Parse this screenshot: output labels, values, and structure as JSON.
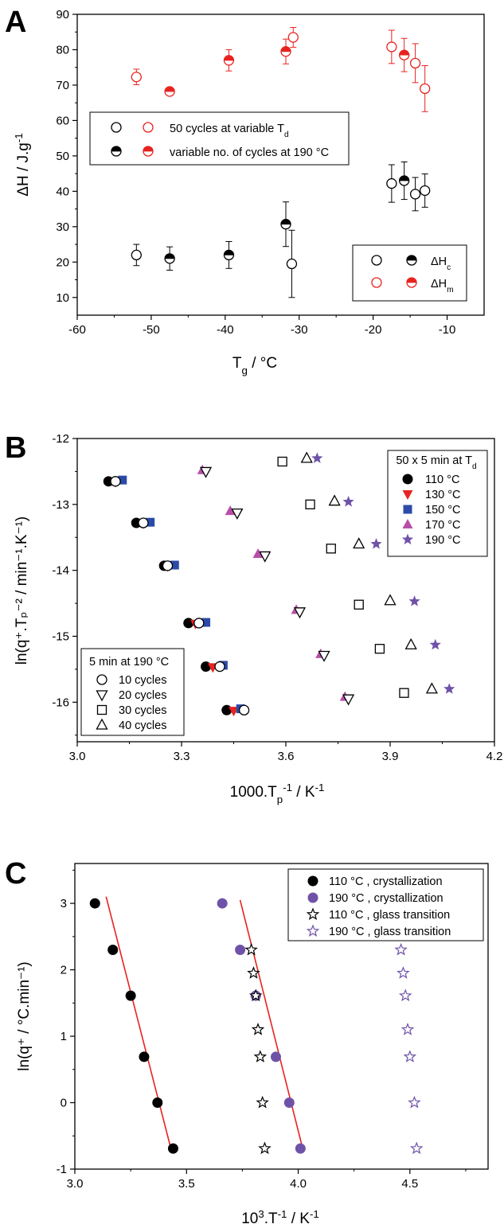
{
  "colors": {
    "black": "#000000",
    "red": "#e8231f",
    "blue": "#2c4aa8",
    "magenta": "#b84ea8",
    "purple": "#6f52a8",
    "fit_line": "#e8231f"
  },
  "panels": [
    {
      "label": "A",
      "xlabel_main": "T",
      "xlabel_sub": "g",
      "xlabel_rest": "  /   °C",
      "ylabel_main": "ΔH   /  J.g",
      "ylabel_sup": "-1",
      "legend1": [
        {
          "text_main": "50 cycles at variable T",
          "text_sub": "d"
        },
        {
          "text_main": "variable no. of cycles at 190 °C",
          "text_sub": ""
        }
      ],
      "legend2": [
        {
          "text_main": "ΔH",
          "text_sub": "c"
        },
        {
          "text_main": "ΔH",
          "text_sub": "m"
        }
      ]
    },
    {
      "label": "B",
      "xlabel_main": "1000.T",
      "xlabel_sub": "p",
      "xlabel_sup": "-1",
      "xlabel_rest": "  /   K",
      "xlabel_rest_sup": "-1",
      "ylabel": "ln(q⁺.Tₚ⁻² / min⁻¹.K⁻¹)",
      "legend1_title_main": "50 x 5 min at T",
      "legend1_title_sub": "d",
      "legend1": [
        "110 °C",
        "130 °C",
        "150 °C",
        "170 °C",
        "190 °C"
      ],
      "legend2_title": "5 min at 190 °C",
      "legend2": [
        "10 cycles",
        "20 cycles",
        "30 cycles",
        "40 cycles"
      ]
    },
    {
      "label": "C",
      "xlabel_main": "10",
      "xlabel_sup": "3",
      "xlabel_mid": ".T",
      "xlabel_sup2": "-1",
      "xlabel_rest": "  /   K",
      "xlabel_rest_sup": "-1",
      "ylabel": "ln(q⁺ / °C.min⁻¹)",
      "legend": [
        "110 °C , crystallization",
        "190 °C , crystallization",
        "110 °C , glass transition",
        "190 °C , glass transition"
      ]
    }
  ],
  "chart_data": [
    {
      "type": "scatter",
      "title": "",
      "xlabel": "Tg / °C",
      "ylabel": "ΔH / J.g-1",
      "xlim": [
        -60,
        -5
      ],
      "ylim": [
        5,
        90
      ],
      "x_ticks": [
        -60,
        -50,
        -40,
        -30,
        -20,
        -10
      ],
      "y_ticks": [
        10,
        20,
        30,
        40,
        50,
        60,
        70,
        80,
        90
      ],
      "series": [
        {
          "name": "ΔHc",
          "group": "50 cycles at variable Td",
          "marker": "open-circle",
          "color": "#000000",
          "points": [
            {
              "x": -52,
              "y": 22,
              "err": 3
            },
            {
              "x": -31,
              "y": 19.5,
              "err": 9.5
            },
            {
              "x": -17.5,
              "y": 42.2,
              "err": 5.3
            },
            {
              "x": -14.3,
              "y": 39.2,
              "err": 4.7
            },
            {
              "x": -13,
              "y": 40.2,
              "err": 4.7
            }
          ]
        },
        {
          "name": "ΔHc",
          "group": "variable no. of cycles at 190 °C",
          "marker": "half-filled-circle",
          "color": "#000000",
          "points": [
            {
              "x": -47.5,
              "y": 21,
              "err": 3.3
            },
            {
              "x": -39.5,
              "y": 22,
              "err": 3.8
            },
            {
              "x": -31.8,
              "y": 30.7,
              "err": 6.3
            },
            {
              "x": -15.8,
              "y": 43,
              "err": 5.3
            }
          ]
        },
        {
          "name": "ΔHm",
          "group": "50 cycles at variable Td",
          "marker": "open-circle",
          "color": "#e8231f",
          "points": [
            {
              "x": -52,
              "y": 72.3,
              "err": 2.2
            },
            {
              "x": -30.8,
              "y": 83.5,
              "err": 2.8
            },
            {
              "x": -17.5,
              "y": 80.8,
              "err": 4.7
            },
            {
              "x": -14.3,
              "y": 76.2,
              "err": 5.5
            },
            {
              "x": -13,
              "y": 69,
              "err": 6.5
            }
          ]
        },
        {
          "name": "ΔHm",
          "group": "variable no. of cycles at 190 °C",
          "marker": "half-filled-circle",
          "color": "#e8231f",
          "points": [
            {
              "x": -47.5,
              "y": 68.2,
              "err": 0
            },
            {
              "x": -39.5,
              "y": 77,
              "err": 3
            },
            {
              "x": -31.8,
              "y": 79.5,
              "err": 3.5
            },
            {
              "x": -15.8,
              "y": 78.5,
              "err": 4.7
            }
          ]
        }
      ],
      "legend_location": [
        "upper-left",
        "lower-right"
      ]
    },
    {
      "type": "scatter",
      "title": "",
      "xlabel": "1000.Tp-1 / K-1",
      "ylabel": "ln(q+.Tp-2 / min-1.K-1)",
      "xlim": [
        3.0,
        4.2
      ],
      "ylim": [
        -16.6,
        -12.0
      ],
      "x_ticks": [
        3.0,
        3.3,
        3.6,
        3.9,
        4.2
      ],
      "y_ticks": [
        -12,
        -13,
        -14,
        -15,
        -16
      ],
      "series": [
        {
          "name": "110 °C",
          "marker": "filled-circle",
          "color": "#000000",
          "x": [
            3.09,
            3.17,
            3.25,
            3.32,
            3.37,
            3.43
          ],
          "y": [
            -12.65,
            -13.28,
            -13.93,
            -14.8,
            -15.46,
            -16.12
          ]
        },
        {
          "name": "130 °C",
          "marker": "filled-triangle-down",
          "color": "#e8231f",
          "x": [
            3.11,
            3.19,
            3.26,
            3.34,
            3.39,
            3.45
          ],
          "y": [
            -12.66,
            -13.29,
            -13.94,
            -14.81,
            -15.47,
            -16.13
          ]
        },
        {
          "name": "150 °C",
          "marker": "filled-square",
          "color": "#2c4aa8",
          "x": [
            3.13,
            3.21,
            3.28,
            3.37,
            3.42,
            3.47
          ],
          "y": [
            -12.63,
            -13.27,
            -13.92,
            -14.79,
            -15.44,
            -16.1
          ]
        },
        {
          "name": "170 °C",
          "marker": "filled-triangle-up",
          "color": "#b84ea8",
          "x": [
            3.36,
            3.44,
            3.52,
            3.63,
            3.7,
            3.77
          ],
          "y": [
            -12.48,
            -13.1,
            -13.75,
            -14.6,
            -15.27,
            -15.92
          ]
        },
        {
          "name": "190 °C",
          "marker": "filled-star",
          "color": "#6f52a8",
          "x": [
            3.69,
            3.78,
            3.86,
            3.97,
            4.03,
            4.07
          ],
          "y": [
            -12.3,
            -12.96,
            -13.6,
            -14.47,
            -15.13,
            -15.8
          ]
        },
        {
          "name": "10 cycles",
          "marker": "open-circle",
          "color": "#000000",
          "x": [
            3.11,
            3.19,
            3.26,
            3.35,
            3.41,
            3.48
          ],
          "y": [
            -12.65,
            -13.28,
            -13.93,
            -14.8,
            -15.46,
            -16.12
          ]
        },
        {
          "name": "20 cycles",
          "marker": "open-triangle-down",
          "color": "#000000",
          "x": [
            3.37,
            3.46,
            3.54,
            3.64,
            3.71,
            3.78
          ],
          "y": [
            -12.5,
            -13.13,
            -13.78,
            -14.63,
            -15.29,
            -15.95
          ]
        },
        {
          "name": "30 cycles",
          "marker": "open-square",
          "color": "#000000",
          "x": [
            3.59,
            3.67,
            3.73,
            3.81,
            3.87,
            3.94
          ],
          "y": [
            -12.35,
            -13.0,
            -13.67,
            -14.52,
            -15.19,
            -15.86
          ]
        },
        {
          "name": "40 cycles",
          "marker": "open-triangle-up",
          "color": "#000000",
          "x": [
            3.66,
            3.74,
            3.81,
            3.9,
            3.96,
            4.02
          ],
          "y": [
            -12.3,
            -12.95,
            -13.6,
            -14.46,
            -15.13,
            -15.8
          ]
        }
      ],
      "legend_location": [
        "upper-right",
        "lower-left"
      ]
    },
    {
      "type": "scatter",
      "title": "",
      "xlabel": "10^3.T-1 / K-1",
      "ylabel": "ln(q+ / °C.min-1)",
      "xlim": [
        3.0,
        4.85
      ],
      "ylim": [
        -1.0,
        3.6
      ],
      "x_ticks": [
        3.0,
        3.5,
        4.0,
        4.5
      ],
      "y_ticks": [
        -1,
        0,
        1,
        2,
        3
      ],
      "series": [
        {
          "name": "110 °C , crystallization",
          "marker": "filled-circle",
          "color": "#000000",
          "x": [
            3.09,
            3.17,
            3.25,
            3.31,
            3.37,
            3.44
          ],
          "y": [
            3.0,
            2.3,
            1.61,
            0.69,
            0.0,
            -0.69
          ]
        },
        {
          "name": "190 °C , crystallization",
          "marker": "filled-circle",
          "color": "#6f52a8",
          "x": [
            3.66,
            3.74,
            3.81,
            3.9,
            3.96,
            4.01
          ],
          "y": [
            3.0,
            2.3,
            1.61,
            0.69,
            0.0,
            -0.69
          ]
        },
        {
          "name": "110 °C , glass transition",
          "marker": "open-star",
          "color": "#000000",
          "x": [
            3.79,
            3.8,
            3.81,
            3.82,
            3.83,
            3.84,
            3.85
          ],
          "y": [
            2.3,
            1.95,
            1.61,
            1.1,
            0.69,
            0.0,
            -0.69
          ]
        },
        {
          "name": "190 °C , glass transition",
          "marker": "open-star",
          "color": "#6f52a8",
          "x": [
            4.46,
            4.47,
            4.48,
            4.49,
            4.5,
            4.52,
            4.53
          ],
          "y": [
            2.3,
            1.95,
            1.61,
            1.1,
            0.69,
            0.0,
            -0.69
          ]
        }
      ],
      "fit_lines": [
        {
          "color": "#e8231f",
          "from": [
            3.14,
            3.1
          ],
          "to": [
            3.43,
            -0.69
          ]
        },
        {
          "color": "#e8231f",
          "from": [
            3.74,
            3.05
          ],
          "to": [
            4.02,
            -0.69
          ]
        }
      ],
      "legend_location": "upper-right"
    }
  ]
}
